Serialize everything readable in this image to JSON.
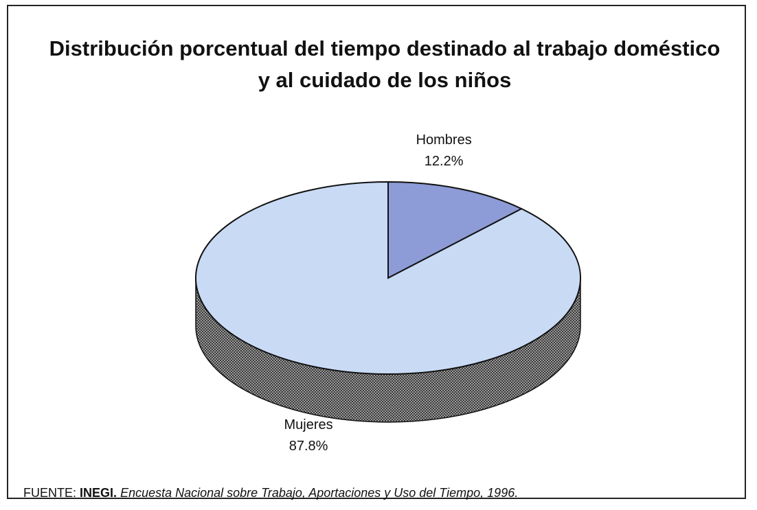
{
  "chart_data": {
    "type": "pie",
    "title": "Distribución porcentual del tiempo destinado al trabajo doméstico y al cuidado de los niños",
    "categories": [
      "Hombres",
      "Mujeres"
    ],
    "values": [
      12.2,
      87.8
    ],
    "value_labels": [
      "12.2%",
      "87.8%"
    ],
    "colors": [
      "#8d9bd6",
      "#c9daf5"
    ],
    "three_d": true,
    "source": {
      "prefix": "FUENTE:",
      "org": "INEGI.",
      "title": "Encuesta Nacional sobre Trabajo, Aportaciones y Uso del Tiempo, 1996."
    }
  }
}
